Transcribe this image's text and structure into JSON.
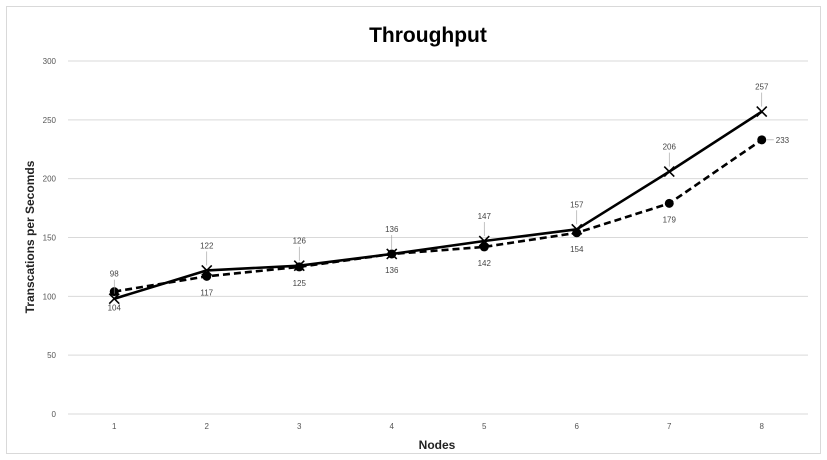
{
  "chart_data": {
    "type": "line",
    "title": "Throughput",
    "xlabel": "Nodes",
    "ylabel": "Transcations per Secomds",
    "categories": [
      "1",
      "2",
      "3",
      "4",
      "5",
      "6",
      "7",
      "8"
    ],
    "yticks": [
      "0",
      "50",
      "100",
      "150",
      "200",
      "250",
      "300"
    ],
    "ylim": [
      0,
      300
    ],
    "grid": true,
    "legend": "none",
    "series": [
      {
        "style": "solid",
        "marker": "x",
        "color": "#000000",
        "values": [
          98,
          122,
          126,
          136,
          147,
          157,
          206,
          257
        ],
        "labels": [
          "98",
          "122",
          "126",
          "136",
          "147",
          "157",
          "206",
          "257"
        ]
      },
      {
        "style": "dashed",
        "marker": "circle",
        "color": "#000000",
        "values": [
          104,
          117,
          125,
          136,
          142,
          154,
          179,
          233
        ],
        "labels": [
          "104",
          "117",
          "125",
          "136",
          "142",
          "154",
          "179",
          "233"
        ]
      }
    ]
  }
}
